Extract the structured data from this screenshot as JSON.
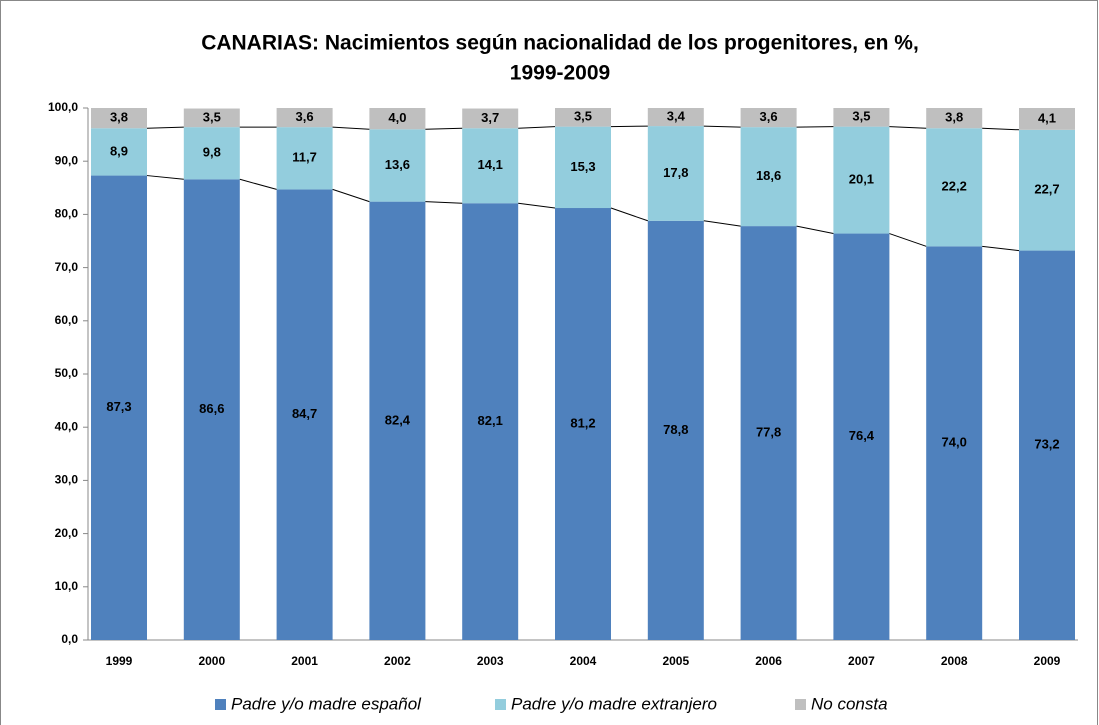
{
  "chart_data": {
    "type": "stacked_bar",
    "title": "CANARIAS: Nacimientos según nacionalidad de los progenitores, en %,",
    "subtitle": "1999-2009",
    "categories": [
      "1999",
      "2000",
      "2001",
      "2002",
      "2003",
      "2004",
      "2005",
      "2006",
      "2007",
      "2008",
      "2009"
    ],
    "series": [
      {
        "name": "Padre y/o madre español",
        "color": "#4f81bd",
        "values": [
          87.3,
          86.6,
          84.7,
          82.4,
          82.1,
          81.2,
          78.8,
          77.8,
          76.4,
          74.0,
          73.2
        ],
        "value_labels": [
          "87,3",
          "86,6",
          "84,7",
          "82,4",
          "82,1",
          "81,2",
          "78,8",
          "77,8",
          "76,4",
          "74,0",
          "73,2"
        ]
      },
      {
        "name": "Padre y/o madre extranjero",
        "color": "#93cddd",
        "values": [
          8.9,
          9.8,
          11.7,
          13.6,
          14.1,
          15.3,
          17.8,
          18.6,
          20.1,
          22.2,
          22.7
        ],
        "value_labels": [
          "8,9",
          "9,8",
          "11,7",
          "13,6",
          "14,1",
          "15,3",
          "17,8",
          "18,6",
          "20,1",
          "22,2",
          "22,7"
        ]
      },
      {
        "name": "No consta",
        "color": "#bfbfbf",
        "values": [
          3.8,
          3.5,
          3.6,
          4.0,
          3.7,
          3.5,
          3.4,
          3.6,
          3.5,
          3.8,
          4.1
        ],
        "value_labels": [
          "3,8",
          "3,5",
          "3,6",
          "4,0",
          "3,7",
          "3,5",
          "3,4",
          "3,6",
          "3,5",
          "3,8",
          "4,1"
        ]
      }
    ],
    "ylim": [
      0,
      100
    ],
    "yticks": [
      {
        "value": 0,
        "label": "0,0"
      },
      {
        "value": 10,
        "label": "10,0"
      },
      {
        "value": 20,
        "label": "20,0"
      },
      {
        "value": 30,
        "label": "30,0"
      },
      {
        "value": 40,
        "label": "40,0"
      },
      {
        "value": 50,
        "label": "50,0"
      },
      {
        "value": 60,
        "label": "60,0"
      },
      {
        "value": 70,
        "label": "70,0"
      },
      {
        "value": 80,
        "label": "80,0"
      },
      {
        "value": 90,
        "label": "90,0"
      },
      {
        "value": 100,
        "label": "100,0"
      }
    ],
    "legend": "bottom",
    "series_lines": true
  }
}
